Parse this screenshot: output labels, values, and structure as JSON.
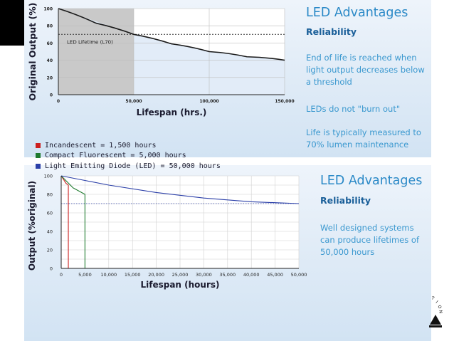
{
  "slide1": {
    "title": "LED Advantages",
    "subtitle": "Reliability",
    "paragraphs": [
      "End of life is reached when light output decreases below a threshold",
      "LEDs do not \"burn out\"",
      "Life is typically measured to 70% lumen maintenance"
    ]
  },
  "slide2": {
    "title": "LED Advantages",
    "subtitle": "Reliability",
    "paragraphs": [
      "Well designed systems can produce lifetimes of 50,000 hours"
    ],
    "legend": [
      {
        "label": "Incandescent = 1,500 hours",
        "color": "#cc1f1f"
      },
      {
        "label": "Compact Fluorescent = 5,000 hours",
        "color": "#1f7a2e"
      },
      {
        "label": "Light Emitting Diode (LED) = 50,000 hours",
        "color": "#2b3fa8"
      }
    ]
  },
  "colors": {
    "accent": "#2a89c7",
    "subtitle": "#1a5f99"
  },
  "chart_data": [
    {
      "type": "line",
      "ylabel": "Original Output (%)",
      "xlabel": "Lifespan (hrs.)",
      "xlim": [
        0,
        150000
      ],
      "ylim": [
        0,
        100
      ],
      "xticks": [
        "0",
        "50,000",
        "100,000",
        "150,000"
      ],
      "yticks": [
        "0",
        "20",
        "40",
        "60",
        "80",
        "100"
      ],
      "threshold": 70,
      "shaded_region_label": "LED Lifetime (L70)",
      "series": [
        {
          "x": [
            0,
            25000,
            50000,
            75000,
            100000,
            125000,
            150000
          ],
          "y": [
            100,
            83,
            70,
            59,
            50,
            44,
            40
          ]
        }
      ]
    },
    {
      "type": "line",
      "ylabel": "Output (%original)",
      "xlabel": "Lifespan (hours)",
      "xlim": [
        0,
        50000
      ],
      "ylim": [
        0,
        100
      ],
      "xticks": [
        "0",
        "5,000",
        "10,000",
        "15,000",
        "20,000",
        "25,000",
        "30,000",
        "35,000",
        "40,000",
        "45,000",
        "50,000"
      ],
      "yticks": [
        "0",
        "20",
        "40",
        "60",
        "80",
        "100"
      ],
      "threshold": 70,
      "series": [
        {
          "name": "Incandescent",
          "color": "#cc1f1f",
          "x": [
            0,
            1000,
            1500,
            1500
          ],
          "y": [
            100,
            92,
            90,
            0
          ]
        },
        {
          "name": "Compact Fluorescent",
          "color": "#1f7a2e",
          "x": [
            0,
            2500,
            5000,
            5000
          ],
          "y": [
            100,
            87,
            80,
            0
          ]
        },
        {
          "name": "Light Emitting Diode (LED)",
          "color": "#2b3fa8",
          "x": [
            0,
            5000,
            10000,
            20000,
            30000,
            40000,
            50000
          ],
          "y": [
            100,
            95,
            90,
            82,
            76,
            72,
            70
          ]
        }
      ]
    }
  ]
}
